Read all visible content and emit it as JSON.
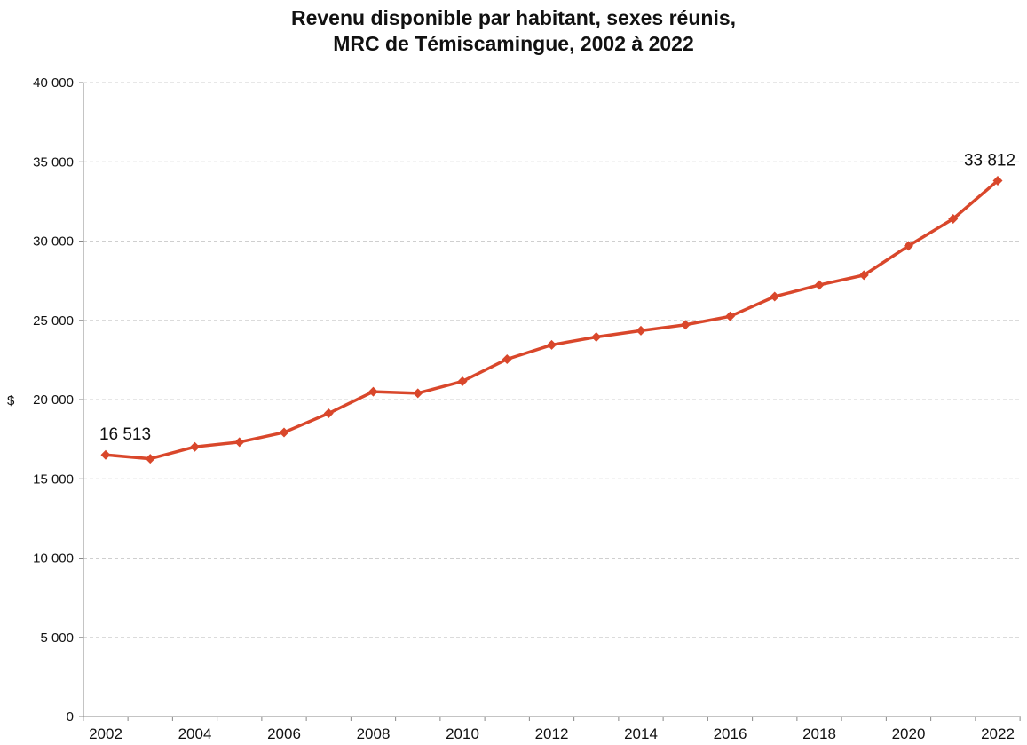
{
  "chart_data": {
    "type": "line",
    "title_line1": "Revenu disponible par habitant, sexes réunis,",
    "title_line2": "MRC de Témiscamingue, 2002 à 2022",
    "xlabel": "",
    "ylabel": "$",
    "ylim": [
      0,
      40000
    ],
    "yticks": [
      0,
      5000,
      10000,
      15000,
      20000,
      25000,
      30000,
      35000,
      40000
    ],
    "ytick_labels": [
      "0",
      "5 000",
      "10 000",
      "15 000",
      "20 000",
      "25 000",
      "30 000",
      "35 000",
      "40 000"
    ],
    "xlim": [
      2002,
      2022
    ],
    "xtick_labels": [
      "2002",
      "2004",
      "2006",
      "2008",
      "2010",
      "2012",
      "2014",
      "2016",
      "2018",
      "2020",
      "2022"
    ],
    "grid": true,
    "series": [
      {
        "color": "#d9472b",
        "x": [
          2002,
          2003,
          2004,
          2005,
          2006,
          2007,
          2008,
          2009,
          2010,
          2011,
          2012,
          2013,
          2014,
          2015,
          2016,
          2017,
          2018,
          2019,
          2020,
          2021,
          2022
        ],
        "values": [
          16513,
          16270,
          17020,
          17320,
          17930,
          19130,
          20500,
          20400,
          21150,
          22550,
          23450,
          23950,
          24350,
          24720,
          25250,
          26500,
          27230,
          27850,
          29700,
          31400,
          33812
        ]
      }
    ],
    "annotations": [
      {
        "x": 2002,
        "text": "16 513"
      },
      {
        "x": 2022,
        "text": "33 812"
      }
    ]
  }
}
